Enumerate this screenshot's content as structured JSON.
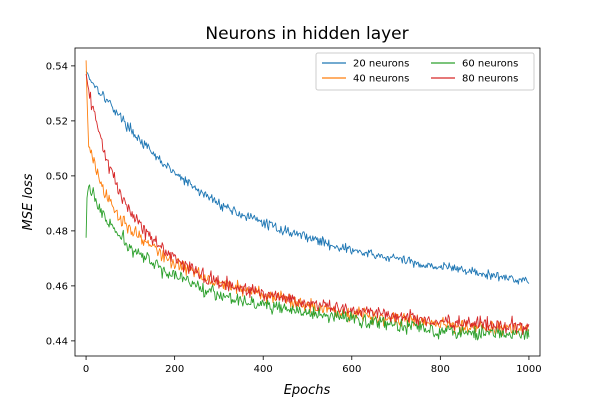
{
  "chart_data": {
    "type": "line",
    "title": "Neurons in hidden layer",
    "xlabel": "Epochs",
    "ylabel": "MSE loss",
    "xlim": [
      -25,
      1025
    ],
    "ylim": [
      0.4345,
      0.5465
    ],
    "x_ticks": [
      0,
      200,
      400,
      600,
      800,
      1000
    ],
    "y_ticks": [
      0.44,
      0.46,
      0.48,
      0.5,
      0.52,
      0.54
    ],
    "x_tick_labels": [
      "0",
      "200",
      "400",
      "600",
      "800",
      "1000"
    ],
    "y_tick_labels": [
      "0.44",
      "0.46",
      "0.48",
      "0.50",
      "0.52",
      "0.54"
    ],
    "grid": false,
    "legend_position": "top-right",
    "legend_columns": 2,
    "series": [
      {
        "name": "20 neurons",
        "color": "#1f77b4",
        "noise": 0.0011,
        "x": [
          0,
          5,
          10,
          20,
          30,
          50,
          75,
          100,
          150,
          200,
          250,
          300,
          350,
          400,
          450,
          500,
          550,
          600,
          650,
          700,
          750,
          800,
          850,
          900,
          950,
          1000
        ],
        "y": [
          0.538,
          0.537,
          0.535,
          0.533,
          0.531,
          0.527,
          0.522,
          0.517,
          0.508,
          0.501,
          0.495,
          0.49,
          0.486,
          0.483,
          0.48,
          0.478,
          0.475,
          0.473,
          0.471,
          0.47,
          0.468,
          0.467,
          0.466,
          0.464,
          0.463,
          0.462
        ]
      },
      {
        "name": "40 neurons",
        "color": "#ff7f0e",
        "noise": 0.0016,
        "x": [
          0,
          3,
          6,
          10,
          20,
          30,
          50,
          75,
          100,
          150,
          200,
          250,
          300,
          400,
          500,
          600,
          700,
          800,
          900,
          1000
        ],
        "y": [
          0.542,
          0.522,
          0.512,
          0.509,
          0.504,
          0.498,
          0.491,
          0.485,
          0.481,
          0.474,
          0.468,
          0.465,
          0.461,
          0.457,
          0.453,
          0.45,
          0.448,
          0.446,
          0.445,
          0.444
        ]
      },
      {
        "name": "60 neurons",
        "color": "#2ca02c",
        "noise": 0.0016,
        "x": [
          0,
          2,
          5,
          10,
          20,
          30,
          50,
          75,
          100,
          150,
          200,
          250,
          300,
          400,
          500,
          600,
          700,
          800,
          900,
          1000
        ],
        "y": [
          0.4775,
          0.492,
          0.4965,
          0.495,
          0.492,
          0.488,
          0.483,
          0.478,
          0.474,
          0.468,
          0.464,
          0.46,
          0.457,
          0.453,
          0.45,
          0.448,
          0.446,
          0.444,
          0.443,
          0.442
        ]
      },
      {
        "name": "80 neurons",
        "color": "#d62728",
        "noise": 0.0016,
        "x": [
          0,
          3,
          6,
          10,
          20,
          30,
          50,
          75,
          100,
          150,
          200,
          250,
          300,
          400,
          500,
          600,
          700,
          800,
          900,
          1000
        ],
        "y": [
          0.537,
          0.534,
          0.53,
          0.527,
          0.522,
          0.515,
          0.504,
          0.494,
          0.487,
          0.477,
          0.47,
          0.465,
          0.461,
          0.457,
          0.454,
          0.451,
          0.449,
          0.447,
          0.446,
          0.445
        ]
      }
    ]
  }
}
